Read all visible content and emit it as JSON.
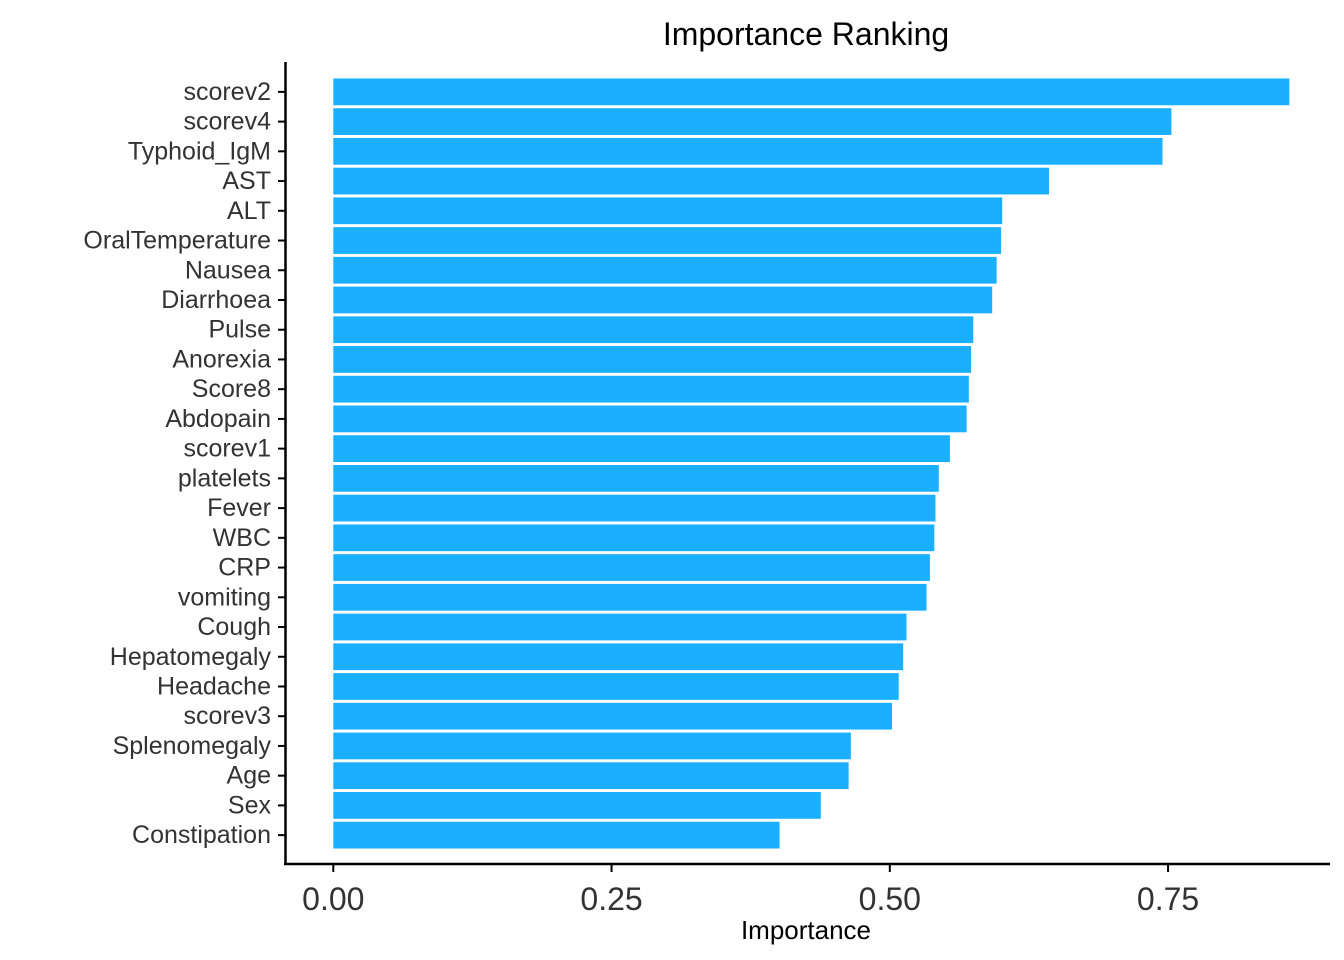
{
  "chart_data": {
    "type": "bar",
    "orientation": "horizontal",
    "title": "Importance Ranking",
    "xlabel": "Importance",
    "ylabel": "",
    "xlim": [
      -0.0425,
      0.8955
    ],
    "x_ticks": [
      0.0,
      0.25,
      0.5,
      0.75
    ],
    "x_tick_labels": [
      "0.00",
      "0.25",
      "0.50",
      "0.75"
    ],
    "bar_color": "#1AAFFF",
    "grid": false,
    "legend": "none",
    "categories": [
      "scorev2",
      "scorev4",
      "Typhoid_IgM",
      "AST",
      "ALT",
      "OralTemperature",
      "Nausea",
      "Diarrhoea",
      "Pulse",
      "Anorexia",
      "Score8",
      "Abdopain",
      "scorev1",
      "platelets",
      "Fever",
      "WBC",
      "CRP",
      "vomiting",
      "Cough",
      "Hepatomegaly",
      "Headache",
      "scorev3",
      "Splenomegaly",
      "Age",
      "Sex",
      "Constipation"
    ],
    "values": [
      0.859,
      0.753,
      0.745,
      0.643,
      0.601,
      0.6,
      0.596,
      0.592,
      0.575,
      0.573,
      0.571,
      0.569,
      0.554,
      0.544,
      0.541,
      0.54,
      0.536,
      0.533,
      0.515,
      0.512,
      0.508,
      0.502,
      0.465,
      0.463,
      0.438,
      0.401
    ]
  }
}
